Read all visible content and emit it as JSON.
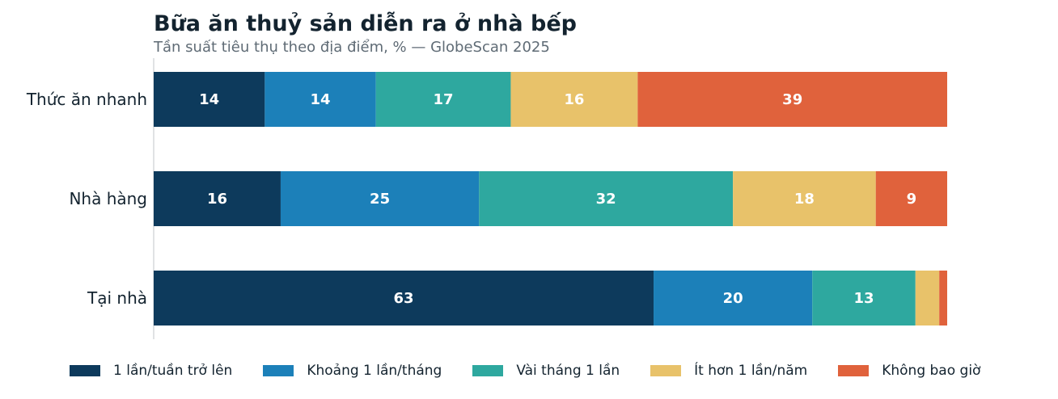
{
  "chart_data": {
    "type": "bar",
    "orientation": "horizontal",
    "stacked": true,
    "title": "Bữa ăn thuỷ sản diễn ra ở nhà bếp",
    "subtitle": "Tần suất tiêu thụ theo địa điểm, % — GlobeScan 2025",
    "categories": [
      "Thức ăn nhanh",
      "Nhà hàng",
      "Tại nhà"
    ],
    "xlim": [
      0,
      100
    ],
    "grid": false,
    "legend_position": "bottom",
    "series": [
      {
        "name": "1 lần/tuần trở lên",
        "color": "#0d3a5c",
        "values": [
          14,
          16,
          63
        ]
      },
      {
        "name": "Khoảng 1 lần/tháng",
        "color": "#1c80b9",
        "values": [
          14,
          25,
          20
        ]
      },
      {
        "name": "Vài tháng 1 lần",
        "color": "#2ea89f",
        "values": [
          17,
          32,
          13
        ]
      },
      {
        "name": "Ít hơn 1 lần/năm",
        "color": "#e8c26a",
        "values": [
          16,
          18,
          3
        ]
      },
      {
        "name": "Không bao giờ",
        "color": "#e0623c",
        "values": [
          39,
          9,
          1
        ]
      }
    ]
  }
}
